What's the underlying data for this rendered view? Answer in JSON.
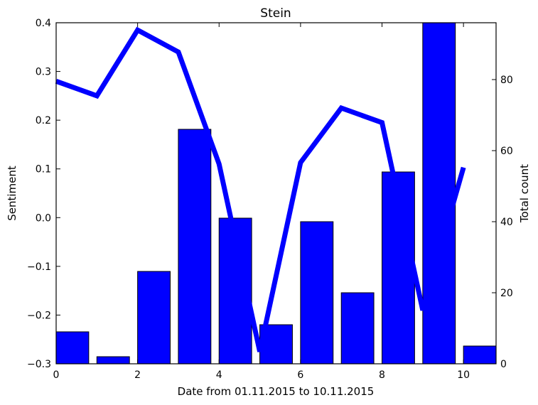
{
  "chart_data": {
    "type": "bar+line",
    "title": "Stein",
    "xlabel": "Date from 01.11.2015 to 10.11.2015",
    "ylabel_left": "Sentiment",
    "ylabel_right": "Total count",
    "xlim": [
      0,
      10.8
    ],
    "ylim_left": [
      -0.3,
      0.4
    ],
    "ylim_right": [
      0,
      96
    ],
    "x_ticks": [
      "0",
      "2",
      "4",
      "6",
      "8",
      "10"
    ],
    "y_left_ticks": [
      "−0.3",
      "−0.2",
      "−0.1",
      "0.0",
      "0.1",
      "0.2",
      "0.3",
      "0.4"
    ],
    "y_right_ticks": [
      "0",
      "20",
      "40",
      "60",
      "80"
    ],
    "bar_series": {
      "axis": "right",
      "color": "#0000ff",
      "x": [
        0,
        1,
        2,
        3,
        4,
        5,
        6,
        7,
        8,
        9,
        10
      ],
      "values": [
        9,
        2,
        26,
        66,
        41,
        11,
        40,
        20,
        54,
        96,
        5
      ]
    },
    "line_series": {
      "axis": "left",
      "color": "#0000ff",
      "x": [
        0,
        1,
        2,
        3,
        4,
        5,
        6,
        7,
        8,
        9,
        10
      ],
      "values": [
        0.28,
        0.25,
        0.385,
        0.34,
        0.11,
        -0.275,
        0.113,
        0.225,
        0.195,
        -0.19,
        0.103
      ]
    },
    "grid": false,
    "legend": "none"
  }
}
